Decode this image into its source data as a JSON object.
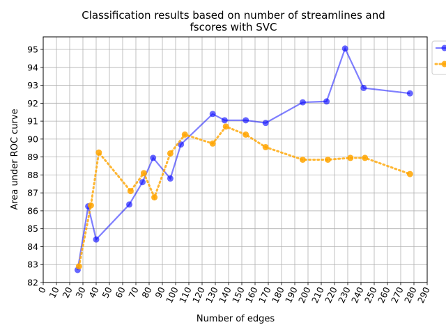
{
  "chart_data": {
    "type": "line",
    "title_lines": [
      "Classification results based on number of streamlines and",
      "fscores with SVC"
    ],
    "xlabel": "Number of edges",
    "ylabel": "Area under ROC curve",
    "xlim": [
      0,
      290
    ],
    "ylim": [
      82,
      95.7
    ],
    "x_ticks": [
      0,
      10,
      20,
      30,
      40,
      50,
      60,
      70,
      80,
      90,
      100,
      110,
      120,
      130,
      140,
      150,
      160,
      170,
      180,
      190,
      200,
      210,
      220,
      230,
      240,
      250,
      260,
      270,
      280,
      290
    ],
    "y_ticks": [
      82,
      83,
      84,
      85,
      86,
      87,
      88,
      89,
      90,
      91,
      92,
      93,
      94,
      95
    ],
    "grid": true,
    "legend_position": "outside-top-right",
    "series": [
      {
        "color": "#0000ff",
        "style": "solid",
        "x": [
          26,
          34,
          40,
          65,
          75,
          83,
          96,
          104,
          128,
          137,
          153,
          168,
          196,
          214,
          228,
          242,
          277
        ],
        "y": [
          82.7,
          86.25,
          84.4,
          86.35,
          87.6,
          88.95,
          87.8,
          89.7,
          91.4,
          91.05,
          91.05,
          90.9,
          92.05,
          92.1,
          95.05,
          92.85,
          92.55
        ]
      },
      {
        "color": "#ffa500",
        "style": "dotted",
        "x": [
          27,
          36,
          42,
          66,
          76,
          84,
          96,
          107,
          128,
          138,
          153,
          168,
          196,
          215,
          232,
          243,
          277
        ],
        "y": [
          82.9,
          86.3,
          89.25,
          87.1,
          88.1,
          86.75,
          89.2,
          90.25,
          89.75,
          90.7,
          90.25,
          89.55,
          88.85,
          88.85,
          88.95,
          88.95,
          88.05
        ]
      }
    ]
  }
}
